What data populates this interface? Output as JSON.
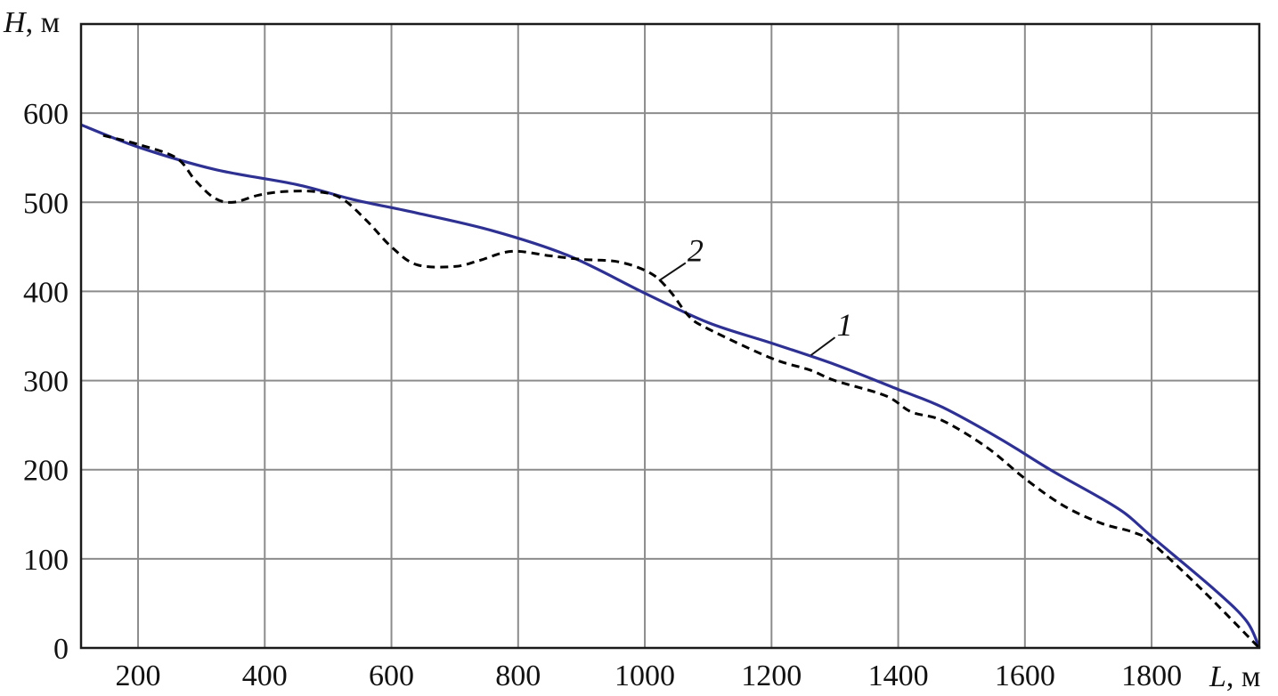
{
  "chart_data": {
    "type": "line",
    "title": "",
    "xlabel": {
      "var": "L",
      "unit": ", м"
    },
    "ylabel": {
      "var": "H",
      "unit": ", м"
    },
    "xlim": [
      110,
      1970
    ],
    "ylim": [
      0,
      700
    ],
    "x_ticks": [
      200,
      400,
      600,
      800,
      1000,
      1200,
      1400,
      1600,
      1800
    ],
    "y_ticks": [
      0,
      100,
      200,
      300,
      400,
      500,
      600
    ],
    "grid": true,
    "legend": "none",
    "series": [
      {
        "name": "1",
        "style": "solid",
        "color": "#2e3192",
        "x": [
          110,
          200,
          320,
          450,
          540,
          640,
          760,
          880,
          1000,
          1100,
          1200,
          1300,
          1400,
          1470,
          1560,
          1640,
          1720,
          1760,
          1800,
          1900,
          1950,
          1970
        ],
        "y": [
          587,
          562,
          537,
          520,
          503,
          488,
          468,
          440,
          398,
          365,
          342,
          318,
          290,
          270,
          235,
          200,
          168,
          150,
          125,
          65,
          30,
          0
        ]
      },
      {
        "name": "2",
        "style": "dashed",
        "color": "#000000",
        "x": [
          145,
          200,
          260,
          290,
          320,
          350,
          390,
          430,
          480,
          520,
          560,
          600,
          640,
          700,
          740,
          790,
          850,
          900,
          960,
          1010,
          1040,
          1070,
          1100,
          1200,
          1260,
          1300,
          1380,
          1420,
          1470,
          1540,
          1600,
          1660,
          1720,
          1770,
          1800,
          1880,
          1970
        ],
        "y": [
          575,
          565,
          550,
          525,
          505,
          500,
          508,
          512,
          512,
          505,
          480,
          450,
          430,
          428,
          435,
          445,
          440,
          436,
          433,
          420,
          400,
          372,
          358,
          325,
          312,
          300,
          283,
          265,
          255,
          225,
          190,
          160,
          140,
          130,
          118,
          65,
          0
        ]
      }
    ],
    "annotations": [
      {
        "text": "1",
        "series": "1"
      },
      {
        "text": "2",
        "series": "2"
      }
    ]
  }
}
